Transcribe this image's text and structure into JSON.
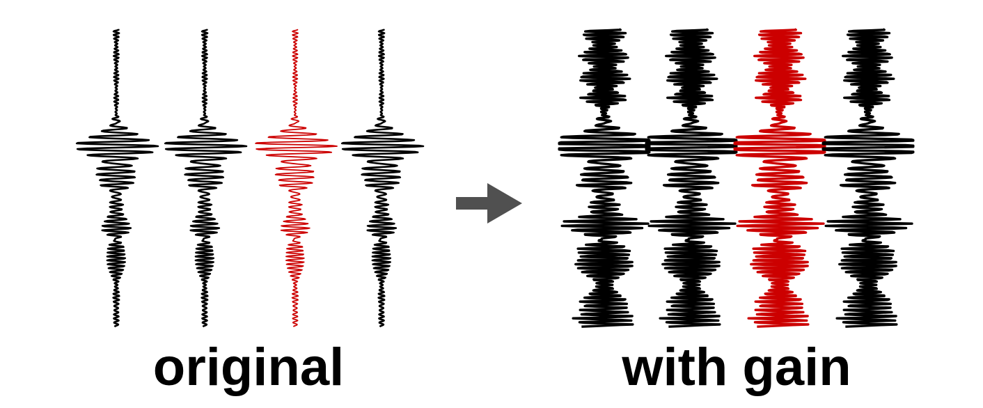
{
  "panels": {
    "left": {
      "label": "original",
      "gain": false
    },
    "right": {
      "label": "with gain",
      "gain": true
    }
  },
  "traces": [
    {
      "color": "#000000"
    },
    {
      "color": "#000000"
    },
    {
      "color": "#cc0000"
    },
    {
      "color": "#000000"
    }
  ],
  "arrow": {
    "color": "#505050",
    "icon": "right-arrow-icon"
  }
}
